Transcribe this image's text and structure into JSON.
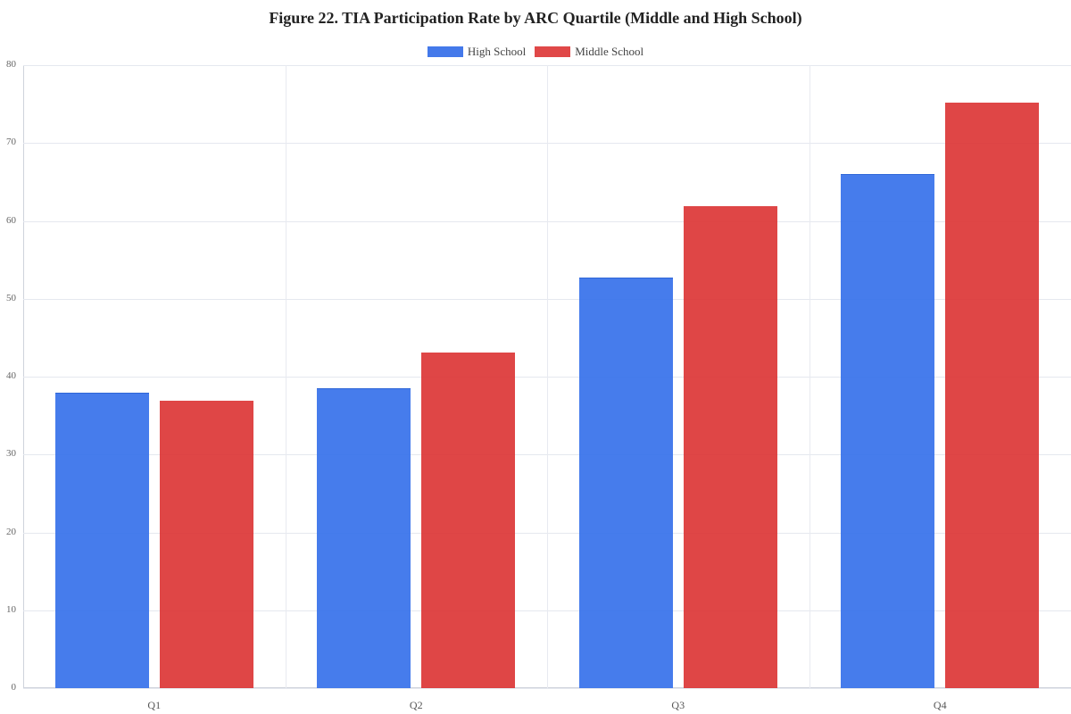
{
  "title": "Figure 22. TIA Participation Rate by ARC Quartile (Middle and High School)",
  "legend": [
    {
      "label": "High School",
      "color": "#4479EA"
    },
    {
      "label": "Middle School",
      "color": "#E04848"
    }
  ],
  "chart_data": {
    "type": "bar",
    "title": "Figure 22. TIA Participation Rate by ARC Quartile (Middle and High School)",
    "xlabel": "",
    "ylabel": "",
    "categories": [
      "Q1",
      "Q2",
      "Q3",
      "Q4"
    ],
    "series": [
      {
        "name": "High School",
        "color": "#4479EA",
        "values": [
          37.8,
          38.4,
          52.6,
          65.9
        ]
      },
      {
        "name": "Middle School",
        "color": "#E04848",
        "values": [
          36.9,
          43.1,
          61.9,
          75.2
        ]
      }
    ],
    "ylim": [
      0,
      80
    ],
    "yticks": [
      0,
      10,
      20,
      30,
      40,
      50,
      60,
      70,
      80
    ],
    "grid": true,
    "legend_position": "top"
  }
}
